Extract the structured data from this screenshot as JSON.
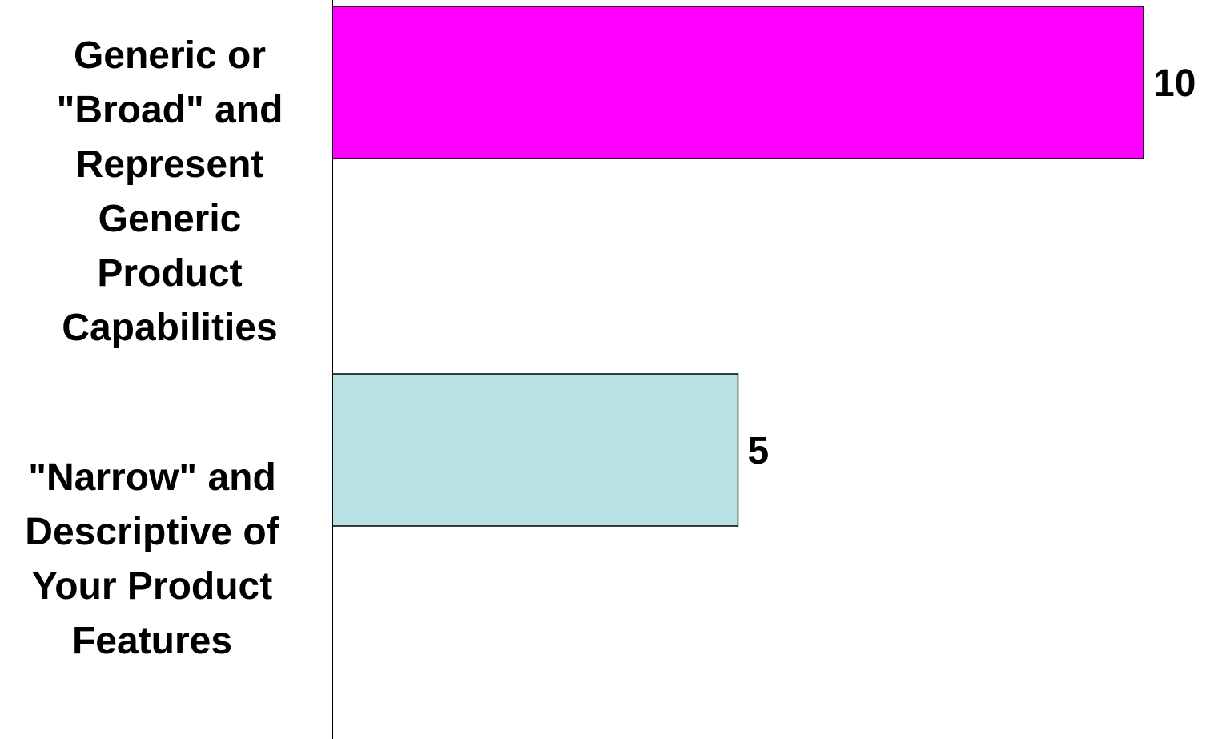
{
  "chart_data": {
    "type": "bar",
    "orientation": "horizontal",
    "categories": [
      "Generic or \"Broad\" and Represent Generic Product Capabilities",
      "\"Narrow\" and Descriptive of Your Product Features"
    ],
    "category_lines": [
      [
        "Generic or",
        "\"Broad\" and",
        "Represent",
        "Generic",
        "Product",
        "Capabilities"
      ],
      [
        "\"Narrow\" and",
        "Descriptive of",
        "Your Product",
        "Features"
      ]
    ],
    "values": [
      10,
      5
    ],
    "data_labels": [
      "10",
      "5"
    ],
    "colors": [
      "#ff00ff",
      "#b9e0e3"
    ],
    "xlim": [
      0,
      10
    ],
    "grid": false,
    "legend": "none",
    "title": "",
    "xlabel": "",
    "ylabel": ""
  }
}
